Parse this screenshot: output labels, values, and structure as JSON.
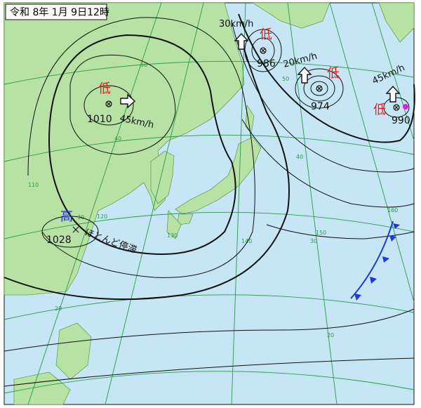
{
  "header": {
    "title": "令和 8年 1月 9日12時"
  },
  "pressure_systems": [
    {
      "kind": "低",
      "pressure": 1010,
      "motion": "45km/h"
    },
    {
      "kind": "低",
      "pressure": 986,
      "motion": "30km/h"
    },
    {
      "kind": "低",
      "pressure": 974,
      "motion": "20km/h"
    },
    {
      "kind": "低",
      "pressure": 990,
      "motion": "45km/h"
    },
    {
      "kind": "高",
      "pressure": 1028,
      "motion": "ほとんど停滞"
    }
  ],
  "grid_labels": {
    "latitude": [
      50,
      40,
      30,
      20,
      50,
      40,
      30,
      20
    ],
    "longitude": [
      110,
      120,
      130,
      140,
      150,
      160
    ]
  }
}
